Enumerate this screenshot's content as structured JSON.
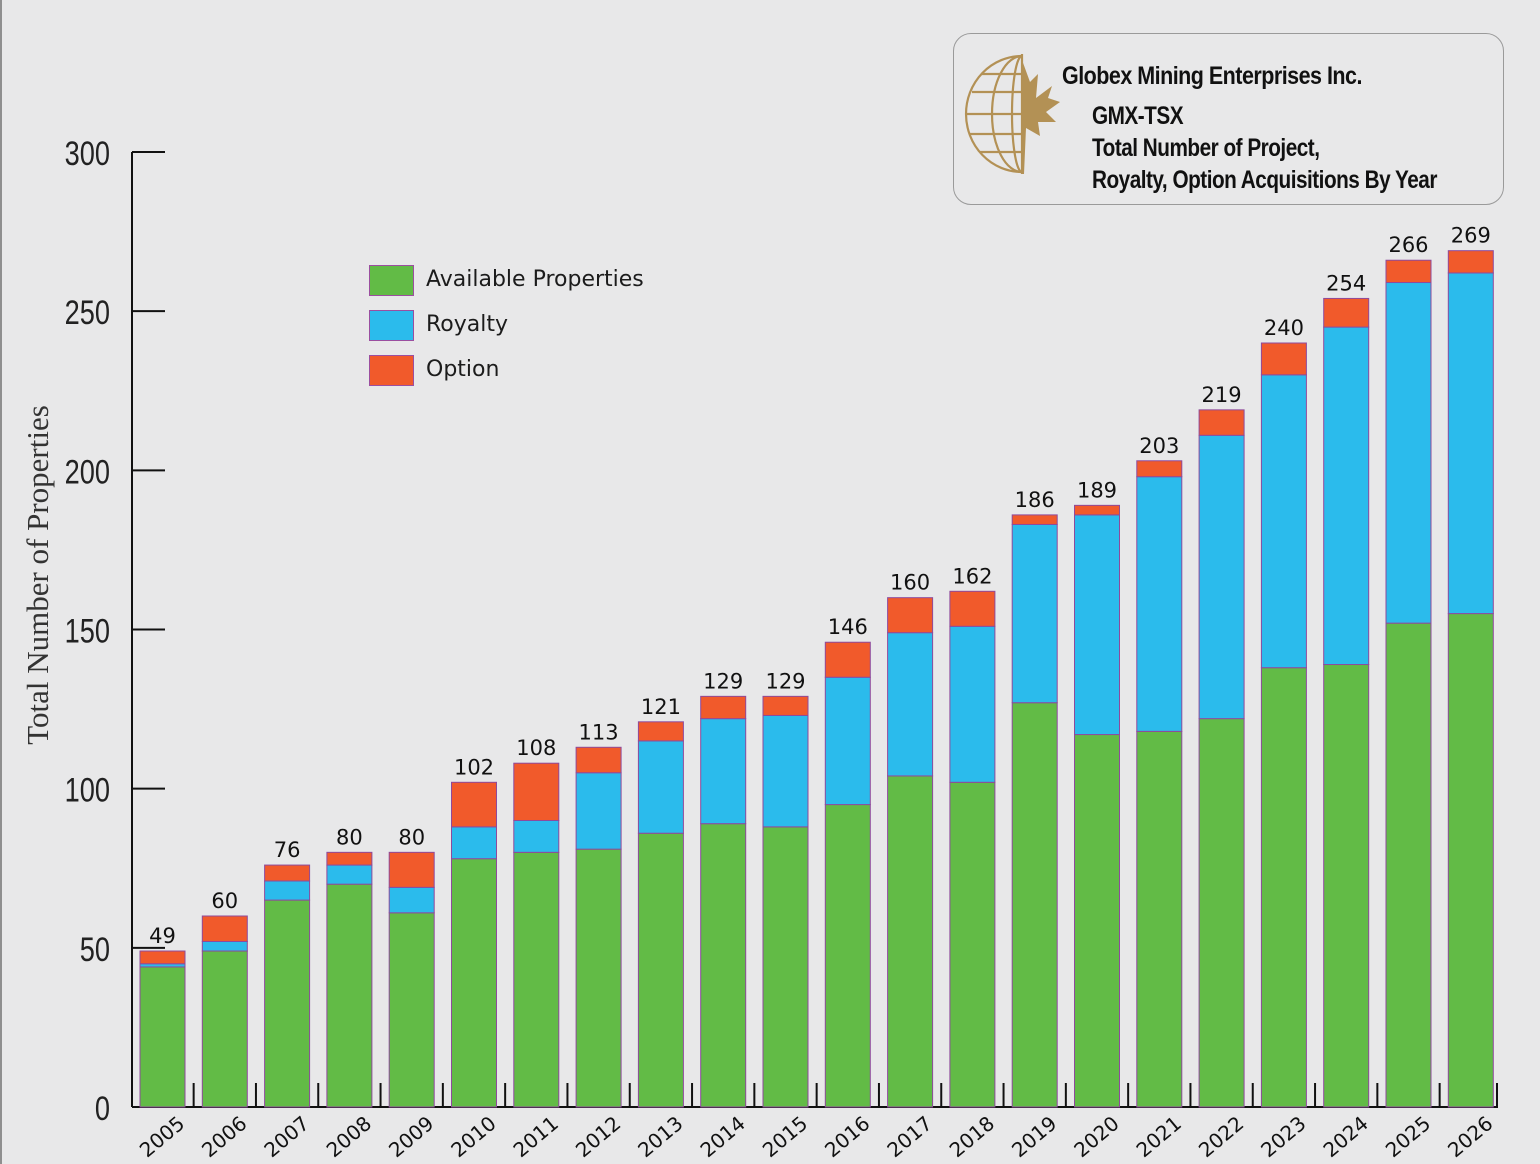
{
  "info": {
    "company": "Globex Mining Enterprises Inc.",
    "ticker": "GMX-TSX",
    "subtitle_line1": "Total Number of Project,",
    "subtitle_line2": "Royalty, Option Acquisitions By Year",
    "logo_icon": "globe-maple-leaf-icon"
  },
  "chart_data": {
    "type": "bar",
    "stacked": true,
    "title": "Total Number of Project, Royalty, Option Acquisitions By Year",
    "xlabel": "",
    "ylabel": "Total Number of Properties",
    "ylim": [
      0,
      300
    ],
    "yticks": [
      0,
      50,
      100,
      150,
      200,
      250,
      300
    ],
    "legend_position": "top-left",
    "categories": [
      "2005",
      "2006",
      "2007",
      "2008",
      "2009",
      "2010",
      "2011",
      "2012",
      "2013",
      "2014",
      "2015",
      "2016",
      "2017",
      "2018",
      "2019",
      "2020",
      "2021",
      "2022",
      "2023",
      "2024",
      "2025",
      "2026"
    ],
    "series": [
      {
        "name": "Available Properties",
        "color": "#62bb46",
        "values": [
          44,
          49,
          65,
          70,
          61,
          78,
          80,
          81,
          86,
          89,
          88,
          95,
          104,
          102,
          127,
          117,
          118,
          122,
          138,
          139,
          152,
          155
        ]
      },
      {
        "name": "Royalty",
        "color": "#2bbbec",
        "values": [
          1,
          3,
          6,
          6,
          8,
          10,
          10,
          24,
          29,
          33,
          35,
          40,
          45,
          49,
          56,
          69,
          80,
          89,
          92,
          106,
          107,
          107
        ]
      },
      {
        "name": "Option",
        "color": "#f15a2b",
        "values": [
          4,
          8,
          5,
          4,
          11,
          14,
          18,
          8,
          6,
          7,
          6,
          11,
          11,
          11,
          3,
          3,
          5,
          8,
          10,
          9,
          7,
          7
        ]
      }
    ],
    "totals": [
      49,
      60,
      76,
      80,
      80,
      102,
      108,
      113,
      121,
      129,
      129,
      146,
      160,
      162,
      186,
      189,
      203,
      219,
      240,
      254,
      266,
      269
    ]
  }
}
